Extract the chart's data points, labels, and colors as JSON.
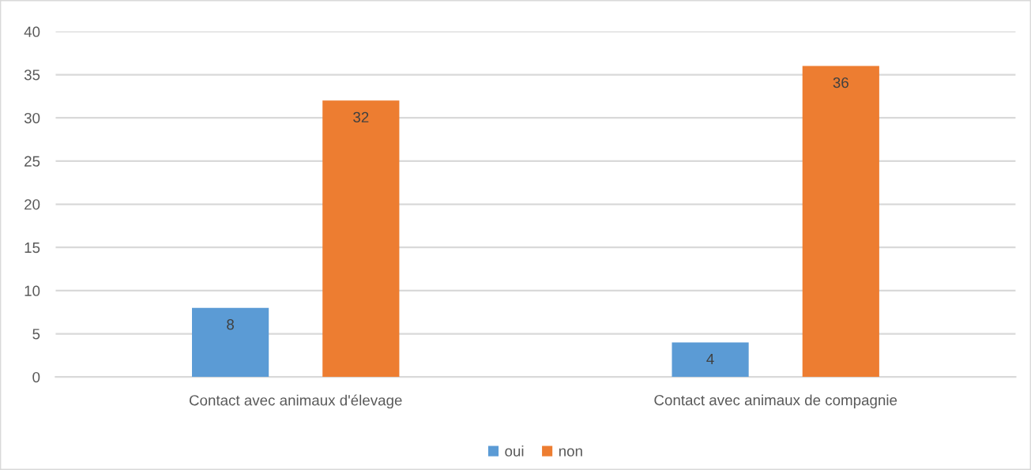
{
  "chart_data": {
    "type": "bar",
    "categories": [
      "Contact avec animaux d'élevage",
      "Contact avec animaux de compagnie"
    ],
    "series": [
      {
        "name": "oui",
        "color": "#5b9bd5",
        "values": [
          8,
          4
        ]
      },
      {
        "name": "non",
        "color": "#ed7d31",
        "values": [
          32,
          36
        ]
      }
    ],
    "ylim": [
      0,
      40
    ],
    "yticks": [
      0,
      5,
      10,
      15,
      20,
      25,
      30,
      35,
      40
    ],
    "grid": "y",
    "legend": "bottom",
    "data_labels": true
  }
}
